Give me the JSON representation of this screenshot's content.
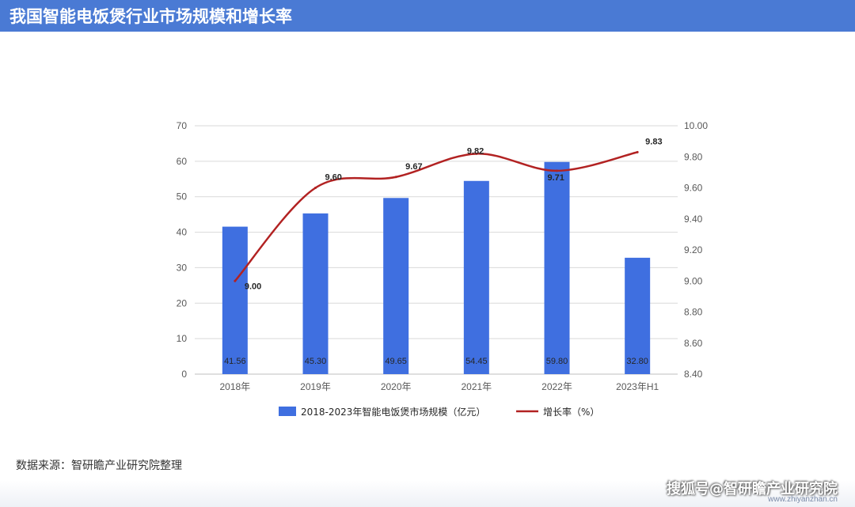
{
  "header": {
    "title": "我国智能电饭煲行业市场规模和增长率"
  },
  "footer": {
    "source": "数据来源：智研瞻产业研究院整理",
    "watermark": "搜狐号@智研瞻产业研究院",
    "site": "www.zhiyanzhan.cn"
  },
  "colors": {
    "header_bg": "#4a7ad4",
    "bar": "#3f6fe0",
    "line": "#b22222"
  },
  "chart_data": {
    "type": "bar",
    "categories": [
      "2018年",
      "2019年",
      "2020年",
      "2021年",
      "2022年",
      "2023年H1"
    ],
    "series": [
      {
        "name": "2018-2023年智能电饭煲市场规模（亿元）",
        "type": "bar",
        "axis": "left",
        "values": [
          41.56,
          45.3,
          49.65,
          54.45,
          59.8,
          32.8
        ],
        "labels": [
          "41.56",
          "45.30",
          "49.65",
          "54.45",
          "59.80",
          "32.80"
        ]
      },
      {
        "name": "增长率（%）",
        "type": "line",
        "axis": "right",
        "values": [
          9.0,
          9.6,
          9.67,
          9.82,
          9.71,
          9.83
        ],
        "labels": [
          "9.00",
          "9.60",
          "9.67",
          "9.82",
          "9.71",
          "9.83"
        ]
      }
    ],
    "y_left": {
      "min": 0,
      "max": 70,
      "ticks": [
        "0",
        "10",
        "20",
        "30",
        "40",
        "50",
        "60",
        "70"
      ]
    },
    "y_right": {
      "min": 8.4,
      "max": 10.0,
      "ticks": [
        "8.40",
        "8.60",
        "8.80",
        "9.00",
        "9.20",
        "9.40",
        "9.60",
        "9.80",
        "10.00"
      ]
    },
    "grid": true,
    "legend": "bottom"
  }
}
